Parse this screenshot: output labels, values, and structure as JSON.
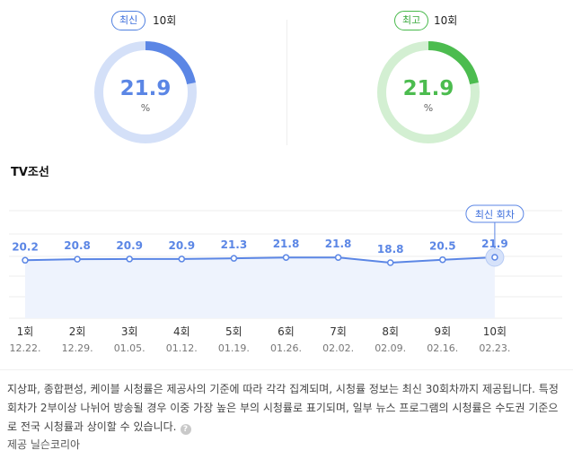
{
  "latest": {
    "badge": "최신",
    "episode": "10회",
    "value": 21.9,
    "value_text": "21.9",
    "unit": "%",
    "color": "#5b86e5",
    "track_color": "#d4e0f8"
  },
  "best": {
    "badge": "최고",
    "episode": "10회",
    "value": 21.9,
    "value_text": "21.9",
    "unit": "%",
    "color": "#4cbc4f",
    "track_color": "#d3efd2"
  },
  "section_title": "TV조선",
  "latest_tag": "최신 회차",
  "chart_data": {
    "type": "line",
    "title": "TV조선",
    "categories": [
      "1회",
      "2회",
      "3회",
      "4회",
      "5회",
      "6회",
      "7회",
      "8회",
      "9회",
      "10회"
    ],
    "dates": [
      "12.22.",
      "12.29.",
      "01.05.",
      "01.12.",
      "01.19.",
      "01.26.",
      "02.02.",
      "02.09.",
      "02.16.",
      "02.23."
    ],
    "values": [
      20.2,
      20.8,
      20.9,
      20.9,
      21.3,
      21.8,
      21.8,
      18.8,
      20.5,
      21.9
    ],
    "value_labels": [
      "20.2",
      "20.8",
      "20.9",
      "20.9",
      "21.3",
      "21.8",
      "21.8",
      "18.8",
      "20.5",
      "21.9"
    ],
    "highlight_index": 9,
    "line_color": "#5b86e5",
    "fill_color": "#eef3fd",
    "grid": true
  },
  "footnote": "지상파, 종합편성, 케이블 시청률은 제공사의 기준에 따라 각각 집계되며, 시청률 정보는 최신 30회차까지 제공됩니다. 특정 회차가 2부이상 나뉘어 방송될 경우 이중 가장 높은 부의 시청률로 표기되며, 일부 뉴스 프로그램의 시청률은 수도권 기준으로 전국 시청률과 상이할 수 있습니다.",
  "help_icon": "question-icon",
  "help_glyph": "?",
  "source": "제공 닐슨코리아"
}
